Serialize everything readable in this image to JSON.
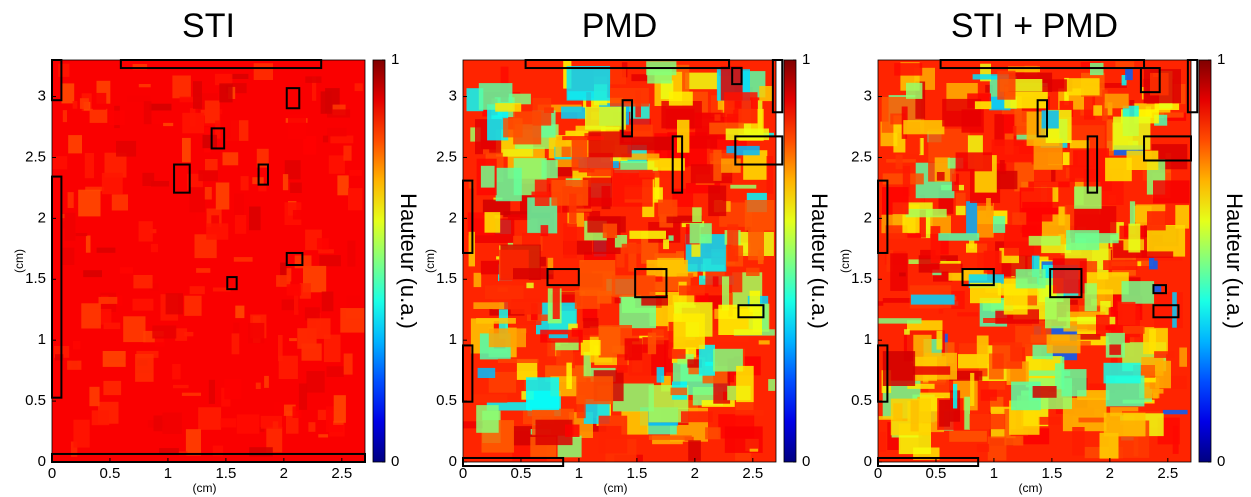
{
  "chart_data": [
    {
      "type": "heatmap",
      "title": "STI",
      "xlabel": "(cm)",
      "ylabel": "(cm)",
      "xlim": [
        0,
        2.7
      ],
      "ylim": [
        0,
        3.3
      ],
      "xticks": [
        0,
        0.5,
        1,
        1.5,
        2,
        2.5
      ],
      "yticks": [
        0,
        0.5,
        1,
        1.5,
        2,
        2.5,
        3
      ],
      "colormap": "jet",
      "colorbar": {
        "label": "Hauteur (u.a.)",
        "lim": [
          0,
          1
        ],
        "ticks": [
          0,
          1
        ]
      }
    },
    {
      "type": "heatmap",
      "title": "PMD",
      "xlabel": "(cm)",
      "ylabel": "(cm)",
      "xlim": [
        0,
        2.7
      ],
      "ylim": [
        0,
        3.3
      ],
      "xticks": [
        0,
        0.5,
        1,
        1.5,
        2,
        2.5
      ],
      "yticks": [
        0,
        0.5,
        1,
        1.5,
        2,
        2.5,
        3
      ],
      "colormap": "jet",
      "colorbar": {
        "label": "Hauteur (u.a.)",
        "lim": [
          0,
          1
        ],
        "ticks": [
          0,
          1
        ]
      }
    },
    {
      "type": "heatmap",
      "title": "STI + PMD",
      "xlabel": "(cm)",
      "ylabel": "(cm)",
      "xlim": [
        0,
        2.7
      ],
      "ylim": [
        0,
        3.3
      ],
      "xticks": [
        0,
        0.5,
        1,
        1.5,
        2,
        2.5
      ],
      "yticks": [
        0,
        0.5,
        1,
        1.5,
        2,
        2.5,
        3
      ],
      "colormap": "jet",
      "colorbar": {
        "label": "Hauteur (u.a.)",
        "lim": [
          0,
          1
        ],
        "ticks": [
          0,
          1
        ]
      }
    }
  ]
}
